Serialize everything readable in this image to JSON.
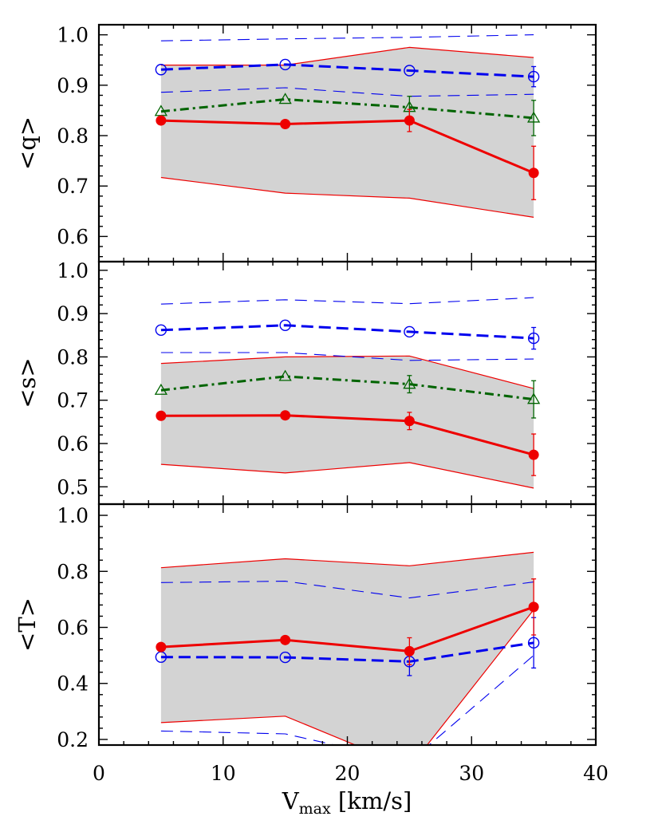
{
  "chart_data": {
    "type": "line",
    "x_axis": {
      "label_main": "V",
      "label_sub": "max",
      "label_unit": " [km/s]",
      "lim": [
        0,
        40
      ],
      "ticks": [
        0,
        10,
        20,
        30,
        40
      ],
      "tick_labels": [
        "0",
        "10",
        "20",
        "30",
        "40"
      ]
    },
    "x": [
      5,
      15,
      25,
      35
    ],
    "colors": {
      "red": "#ee0000",
      "blue": "#0000ee",
      "green": "#006400",
      "band": "#d3d3d3"
    },
    "panels": [
      {
        "ylabel": "<q>",
        "ylim": [
          0.55,
          1.02
        ],
        "yticks": [
          0.6,
          0.7,
          0.8,
          0.9,
          1.0
        ],
        "ytick_labels": [
          "0.6",
          "0.7",
          "0.8",
          "0.9",
          "1.0"
        ],
        "band_upper": [
          0.94,
          0.94,
          0.975,
          0.955
        ],
        "band_lower": [
          0.717,
          0.686,
          0.676,
          0.638
        ],
        "blue_upper": [
          0.988,
          0.992,
          0.995,
          1.0
        ],
        "blue_lower": [
          0.886,
          0.895,
          0.878,
          0.882
        ],
        "series": [
          {
            "marker": "filled-circle",
            "color": "red",
            "style": "solid",
            "values": [
              0.83,
              0.823,
              0.83,
              0.726
            ],
            "errors": [
              0,
              0,
              0.022,
              0.053
            ]
          },
          {
            "marker": "open-circle",
            "color": "blue",
            "style": "dashed",
            "values": [
              0.931,
              0.941,
              0.929,
              0.917
            ],
            "errors": [
              0,
              0,
              0,
              0.02
            ]
          },
          {
            "marker": "open-triangle",
            "color": "green",
            "style": "dashdot",
            "values": [
              0.848,
              0.872,
              0.856,
              0.835
            ],
            "errors": [
              0,
              0,
              0.022,
              0.035
            ]
          }
        ]
      },
      {
        "ylabel": "<s>",
        "ylim": [
          0.46,
          1.02
        ],
        "yticks": [
          0.5,
          0.6,
          0.7,
          0.8,
          0.9,
          1.0
        ],
        "ytick_labels": [
          "0.5",
          "0.6",
          "0.7",
          "0.8",
          "0.9",
          "1.0"
        ],
        "band_upper": [
          0.785,
          0.8,
          0.802,
          0.727
        ],
        "band_lower": [
          0.552,
          0.532,
          0.556,
          0.497
        ],
        "blue_upper": [
          0.922,
          0.932,
          0.923,
          0.937
        ],
        "blue_lower": [
          0.81,
          0.81,
          0.792,
          0.795
        ],
        "series": [
          {
            "marker": "filled-circle",
            "color": "red",
            "style": "solid",
            "values": [
              0.664,
              0.665,
              0.652,
              0.574
            ],
            "errors": [
              0,
              0,
              0.02,
              0.048
            ]
          },
          {
            "marker": "open-circle",
            "color": "blue",
            "style": "dashed",
            "values": [
              0.862,
              0.873,
              0.858,
              0.843
            ],
            "errors": [
              0,
              0,
              0,
              0.025
            ]
          },
          {
            "marker": "open-triangle",
            "color": "green",
            "style": "dashdot",
            "values": [
              0.723,
              0.755,
              0.737,
              0.702
            ],
            "errors": [
              0,
              0,
              0.02,
              0.043
            ]
          }
        ]
      },
      {
        "ylabel": "<T>",
        "ylim": [
          0.18,
          1.04
        ],
        "yticks": [
          0.2,
          0.4,
          0.6,
          0.8,
          1.0
        ],
        "ytick_labels": [
          "0.2",
          "0.4",
          "0.6",
          "0.8",
          "1.0"
        ],
        "band_upper": [
          0.813,
          0.845,
          0.82,
          0.868
        ],
        "band_lower": [
          0.26,
          0.283,
          0.1,
          0.663
        ],
        "blue_upper": [
          0.76,
          0.765,
          0.705,
          0.762
        ],
        "blue_lower": [
          0.23,
          0.22,
          0.12,
          0.5
        ],
        "series": [
          {
            "marker": "filled-circle",
            "color": "red",
            "style": "solid",
            "values": [
              0.53,
              0.555,
              0.515,
              0.673
            ],
            "errors": [
              0,
              0,
              0.048,
              0.1
            ]
          },
          {
            "marker": "open-circle",
            "color": "blue",
            "style": "dashed",
            "values": [
              0.494,
              0.493,
              0.478,
              0.545
            ],
            "errors": [
              0,
              0,
              0.05,
              0.09
            ]
          }
        ]
      }
    ]
  }
}
